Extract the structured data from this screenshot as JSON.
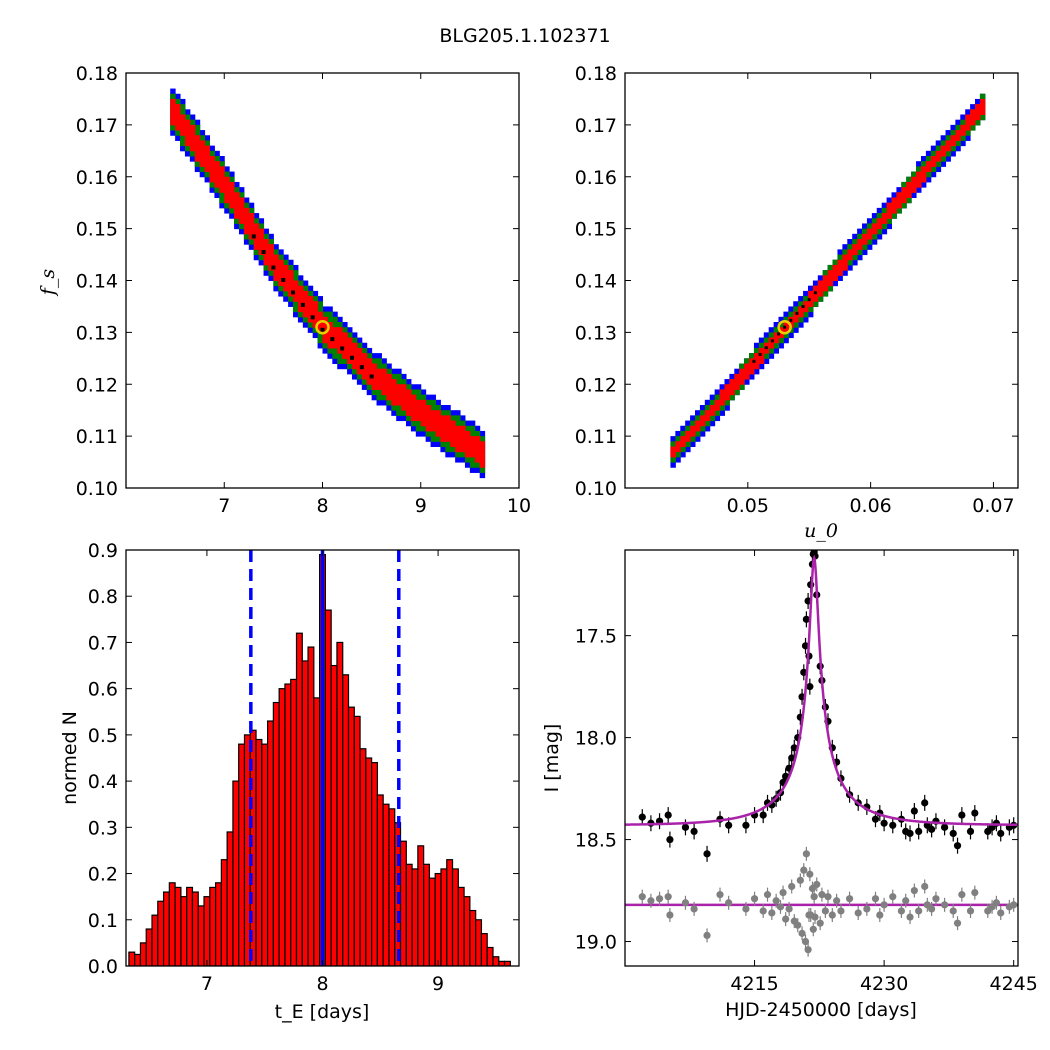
{
  "figure": {
    "title": "BLG205.1.102371"
  },
  "chart_data": [
    {
      "id": "fs_vs_tE",
      "type": "heatmap",
      "xlabel": "",
      "ylabel": "f_s",
      "xlim": [
        6.0,
        10.0
      ],
      "ylim": [
        0.1,
        0.18
      ],
      "xticks": [
        7,
        8,
        9,
        10
      ],
      "yticks": [
        0.1,
        0.11,
        0.12,
        0.13,
        0.14,
        0.15,
        0.16,
        0.17,
        0.18
      ],
      "confidence_colors": {
        "3sigma": "#0000ff",
        "2sigma": "#008000",
        "1sigma": "#ff0000",
        "best_fits": "#000000"
      },
      "ridge": [
        [
          6.45,
          0.1725
        ],
        [
          7.0,
          0.1575
        ],
        [
          7.5,
          0.1425
        ],
        [
          8.0,
          0.1305
        ],
        [
          8.5,
          0.1215
        ],
        [
          9.0,
          0.114
        ],
        [
          9.6,
          0.1065
        ]
      ],
      "band_halfwidth_fs": {
        "1sigma": 0.0022,
        "2sigma": 0.0034,
        "3sigma": 0.0044
      },
      "best_fit": {
        "x": 8.0,
        "y": 0.131
      }
    },
    {
      "id": "fs_vs_u0",
      "type": "heatmap",
      "xlabel": "u_0",
      "ylabel": "",
      "xlim": [
        0.04,
        0.072
      ],
      "ylim": [
        0.1,
        0.18
      ],
      "xticks": [
        0.05,
        0.06,
        0.07
      ],
      "yticks": [
        0.1,
        0.11,
        0.12,
        0.13,
        0.14,
        0.15,
        0.16,
        0.17,
        0.18
      ],
      "confidence_colors": {
        "3sigma": "#0000ff",
        "2sigma": "#008000",
        "1sigma": "#ff0000",
        "best_fits": "#000000"
      },
      "ridge": [
        [
          0.0437,
          0.1065
        ],
        [
          0.053,
          0.131
        ],
        [
          0.069,
          0.1735
        ]
      ],
      "band_halfwidth_fs": {
        "1sigma": 0.001,
        "2sigma": 0.0018,
        "3sigma": 0.0026
      },
      "best_fit": {
        "x": 0.053,
        "y": 0.131
      }
    },
    {
      "id": "tE_histogram",
      "type": "bar",
      "xlabel": "t_E  [days]",
      "ylabel": "normed N",
      "xlim": [
        6.3,
        9.7
      ],
      "ylim": [
        0.0,
        0.9
      ],
      "xticks": [
        7,
        8,
        9
      ],
      "yticks": [
        0.0,
        0.1,
        0.2,
        0.3,
        0.4,
        0.5,
        0.6,
        0.7,
        0.8,
        0.9
      ],
      "bin_start": 6.325,
      "bin_width": 0.05,
      "values": [
        0.03,
        0.025,
        0.05,
        0.08,
        0.11,
        0.14,
        0.16,
        0.18,
        0.17,
        0.15,
        0.17,
        0.16,
        0.13,
        0.15,
        0.17,
        0.18,
        0.23,
        0.29,
        0.4,
        0.48,
        0.5,
        0.51,
        0.49,
        0.48,
        0.53,
        0.57,
        0.6,
        0.61,
        0.62,
        0.72,
        0.66,
        0.69,
        0.58,
        0.89,
        0.77,
        0.65,
        0.7,
        0.63,
        0.56,
        0.54,
        0.47,
        0.45,
        0.44,
        0.37,
        0.35,
        0.34,
        0.31,
        0.27,
        0.22,
        0.21,
        0.26,
        0.22,
        0.19,
        0.2,
        0.21,
        0.23,
        0.21,
        0.17,
        0.15,
        0.12,
        0.1,
        0.07,
        0.04,
        0.02,
        0.01,
        0.01
      ],
      "bar_color": "#ff0000",
      "best_value_line": {
        "x": 8.0,
        "color": "#0000ff",
        "style": "solid"
      },
      "interval_lines": {
        "x": [
          7.38,
          8.66
        ],
        "color": "#0000ff",
        "style": "dashed"
      }
    },
    {
      "id": "light_curve",
      "type": "scatter",
      "xlabel": "HJD-2450000 [days]",
      "ylabel": "I [mag]",
      "xlim": [
        4200.0,
        4245.5
      ],
      "ylim": [
        19.12,
        17.08
      ],
      "y_inverted": true,
      "xticks": [
        4215,
        4230,
        4245
      ],
      "yticks": [
        17.5,
        18.0,
        18.5,
        19.0
      ],
      "data_color": "#000000",
      "residual_color": "#808080",
      "model_color": "#aa22aa",
      "model": {
        "baseline_mag": 18.43,
        "t0": 4221.9,
        "u0": 0.053,
        "tE": 8.0,
        "fs": 0.131
      },
      "residual_offset_mag": 18.82,
      "points": [
        [
          4202.0,
          18.39
        ],
        [
          4203.0,
          18.42
        ],
        [
          4204.0,
          18.41
        ],
        [
          4205.0,
          18.38
        ],
        [
          4205.2,
          18.5
        ],
        [
          4207.0,
          18.44
        ],
        [
          4208.0,
          18.46
        ],
        [
          4209.5,
          18.57
        ],
        [
          4211.0,
          18.4
        ],
        [
          4212.0,
          18.43
        ],
        [
          4214.0,
          18.43
        ],
        [
          4215.0,
          18.38
        ],
        [
          4216.0,
          18.38
        ],
        [
          4216.5,
          18.32
        ],
        [
          4217.0,
          18.33
        ],
        [
          4217.5,
          18.3
        ],
        [
          4218.0,
          18.27
        ],
        [
          4218.3,
          18.22
        ],
        [
          4218.6,
          18.19
        ],
        [
          4219.0,
          18.15
        ],
        [
          4219.3,
          18.1
        ],
        [
          4219.6,
          18.05
        ],
        [
          4220.0,
          18.0
        ],
        [
          4220.3,
          17.9
        ],
        [
          4220.5,
          17.8
        ],
        [
          4220.7,
          17.68
        ],
        [
          4220.9,
          17.55
        ],
        [
          4221.0,
          17.42
        ],
        [
          4221.2,
          17.33
        ],
        [
          4221.3,
          17.6
        ],
        [
          4221.4,
          17.75
        ],
        [
          4221.5,
          17.25
        ],
        [
          4221.7,
          17.15
        ],
        [
          4221.8,
          17.1
        ],
        [
          4221.9,
          17.09
        ],
        [
          4222.0,
          17.11
        ],
        [
          4222.2,
          17.3
        ],
        [
          4222.6,
          17.65
        ],
        [
          4222.8,
          17.72
        ],
        [
          4223.2,
          17.85
        ],
        [
          4223.5,
          17.92
        ],
        [
          4224.0,
          18.05
        ],
        [
          4224.5,
          18.12
        ],
        [
          4225.0,
          18.2
        ],
        [
          4226.0,
          18.28
        ],
        [
          4227.0,
          18.32
        ],
        [
          4228.0,
          18.34
        ],
        [
          4229.0,
          18.4
        ],
        [
          4229.5,
          18.37
        ],
        [
          4230.0,
          18.42
        ],
        [
          4231.0,
          18.43
        ],
        [
          4232.0,
          18.4
        ],
        [
          4232.5,
          18.46
        ],
        [
          4233.0,
          18.47
        ],
        [
          4233.5,
          18.36
        ],
        [
          4234.0,
          18.46
        ],
        [
          4234.7,
          18.32
        ],
        [
          4235.0,
          18.43
        ],
        [
          4235.5,
          18.45
        ],
        [
          4236.0,
          18.41
        ],
        [
          4237.0,
          18.44
        ],
        [
          4238.0,
          18.47
        ],
        [
          4238.5,
          18.53
        ],
        [
          4239.0,
          18.38
        ],
        [
          4240.0,
          18.46
        ],
        [
          4240.5,
          18.37
        ],
        [
          4242.0,
          18.46
        ],
        [
          4242.5,
          18.44
        ],
        [
          4243.0,
          18.42
        ],
        [
          4243.5,
          18.47
        ],
        [
          4244.5,
          18.44
        ],
        [
          4245.0,
          18.43
        ]
      ],
      "residuals": [
        [
          4202.0,
          -0.04
        ],
        [
          4203.0,
          -0.02
        ],
        [
          4204.0,
          -0.03
        ],
        [
          4205.0,
          -0.04
        ],
        [
          4205.2,
          0.05
        ],
        [
          4207.0,
          -0.01
        ],
        [
          4208.0,
          0.02
        ],
        [
          4209.5,
          0.15
        ],
        [
          4211.0,
          -0.05
        ],
        [
          4212.0,
          -0.01
        ],
        [
          4214.0,
          0.02
        ],
        [
          4215.0,
          -0.03
        ],
        [
          4216.0,
          0.03
        ],
        [
          4216.5,
          -0.05
        ],
        [
          4217.0,
          0.04
        ],
        [
          4217.5,
          -0.02
        ],
        [
          4218.0,
          0.01
        ],
        [
          4218.3,
          -0.06
        ],
        [
          4218.6,
          0.07
        ],
        [
          4219.0,
          0.02
        ],
        [
          4219.3,
          -0.09
        ],
        [
          4219.6,
          0.08
        ],
        [
          4220.0,
          0.1
        ],
        [
          4220.3,
          -0.12
        ],
        [
          4220.5,
          0.14
        ],
        [
          4220.7,
          -0.17
        ],
        [
          4220.9,
          0.18
        ],
        [
          4221.0,
          -0.25
        ],
        [
          4221.2,
          0.22
        ],
        [
          4221.3,
          0.05
        ],
        [
          4221.4,
          -0.15
        ],
        [
          4221.5,
          0.05
        ],
        [
          4221.7,
          -0.08
        ],
        [
          4221.8,
          0.12
        ],
        [
          4221.9,
          -0.04
        ],
        [
          4222.0,
          0.06
        ],
        [
          4222.2,
          -0.1
        ],
        [
          4222.6,
          0.09
        ],
        [
          4222.8,
          -0.05
        ],
        [
          4223.2,
          0.03
        ],
        [
          4223.5,
          -0.04
        ],
        [
          4224.0,
          0.05
        ],
        [
          4224.5,
          -0.02
        ],
        [
          4225.0,
          0.03
        ],
        [
          4226.0,
          -0.03
        ],
        [
          4227.0,
          0.04
        ],
        [
          4228.0,
          0.02
        ],
        [
          4229.0,
          -0.03
        ],
        [
          4229.5,
          0.05
        ],
        [
          4230.0,
          0.0
        ],
        [
          4231.0,
          -0.04
        ],
        [
          4232.0,
          0.03
        ],
        [
          4232.5,
          -0.02
        ],
        [
          4233.0,
          0.06
        ],
        [
          4233.5,
          -0.07
        ],
        [
          4234.0,
          0.03
        ],
        [
          4234.7,
          -0.09
        ],
        [
          4235.0,
          0.0
        ],
        [
          4235.5,
          0.02
        ],
        [
          4236.0,
          -0.03
        ],
        [
          4237.0,
          0.0
        ],
        [
          4238.0,
          0.03
        ],
        [
          4238.5,
          0.09
        ],
        [
          4239.0,
          -0.05
        ],
        [
          4240.0,
          0.03
        ],
        [
          4240.5,
          -0.06
        ],
        [
          4242.0,
          0.03
        ],
        [
          4242.5,
          0.01
        ],
        [
          4243.0,
          -0.01
        ],
        [
          4243.5,
          0.04
        ],
        [
          4244.5,
          0.01
        ],
        [
          4245.0,
          0.0
        ]
      ]
    }
  ]
}
